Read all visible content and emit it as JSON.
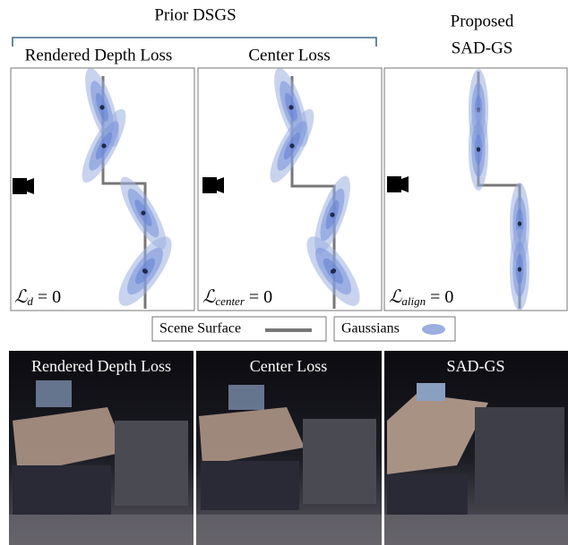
{
  "figure": {
    "group_title": "Prior DSGS",
    "panels": [
      {
        "title": "Rendered Depth Loss",
        "formula": {
          "symbol": "ℒ",
          "subscript": "d",
          "equation": "= 0"
        }
      },
      {
        "title": "Center Loss",
        "formula": {
          "symbol": "ℒ",
          "subscript": "center",
          "equation": "= 0"
        }
      },
      {
        "title_lines": [
          "Proposed",
          "SAD-GS"
        ],
        "formula": {
          "symbol": "ℒ",
          "subscript": "align",
          "equation": "= 0"
        }
      }
    ],
    "legend": [
      "Scene Surface",
      "Gaussians"
    ],
    "renders": [
      "Rendered Depth Loss",
      "Center Loss",
      "SAD-GS"
    ]
  }
}
